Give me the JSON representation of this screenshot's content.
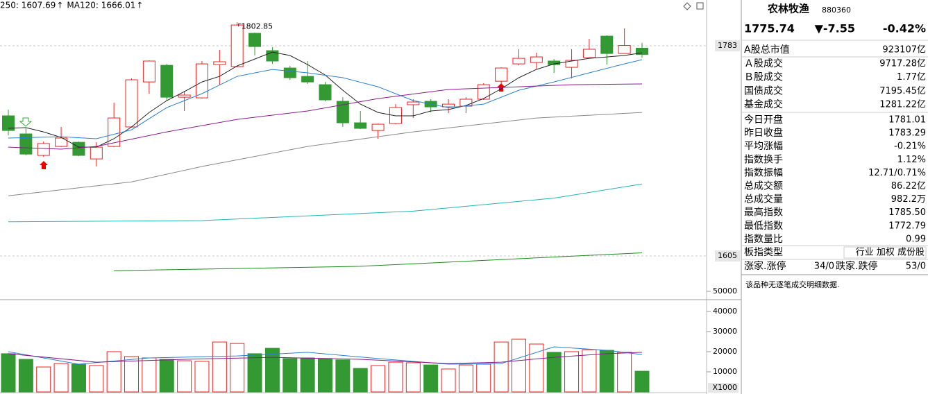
{
  "chart_data": [
    {
      "type": "candlestick",
      "legend": [
        {
          "label": "250: 1607.69",
          "arrow": "↑",
          "color": "#1a8a1a"
        },
        {
          "label": "MA120: 1666.01",
          "arrow": "↑",
          "color": "#1fb5b5"
        }
      ],
      "up_color": "#ee2222",
      "down_color": "#339933",
      "open": [
        1723.7,
        1708.4,
        1690.2,
        1697.8,
        1701.3,
        1687.2,
        1697.8,
        1714.3,
        1752.4,
        1766.5,
        1739.5,
        1738.9,
        1767.1,
        1765.4,
        1793.6,
        1778.9,
        1764.2,
        1757.1,
        1750.1,
        1736.0,
        1717.8,
        1711.3,
        1717.2,
        1733.1,
        1736.0,
        1731.3,
        1731.9,
        1737.8,
        1753.0,
        1767.7,
        1768.9,
        1770.1,
        1764.8,
        1773.0,
        1791.2,
        1776.5,
        1781.01
      ],
      "high": [
        1728.9,
        1713.1,
        1701.9,
        1714.3,
        1701.9,
        1701.3,
        1734.8,
        1755.4,
        1770.7,
        1767.7,
        1744.8,
        1770.1,
        1779.5,
        1802.85,
        1794.2,
        1781.8,
        1766.0,
        1770.1,
        1752.4,
        1739.5,
        1727.8,
        1717.2,
        1733.6,
        1737.8,
        1737.8,
        1737.8,
        1739.5,
        1751.3,
        1764.8,
        1780.1,
        1777.1,
        1771.8,
        1780.1,
        1788.9,
        1791.8,
        1797.7,
        1785.5
      ],
      "low": [
        1707.2,
        1690.2,
        1689.0,
        1697.2,
        1689.6,
        1680.8,
        1697.2,
        1713.7,
        1742.5,
        1736.6,
        1727.8,
        1738.3,
        1750.1,
        1764.8,
        1774.8,
        1767.7,
        1754.2,
        1750.7,
        1736.0,
        1714.3,
        1712.5,
        1704.3,
        1716.6,
        1721.9,
        1726.6,
        1726.0,
        1726.0,
        1737.2,
        1750.1,
        1766.5,
        1763.6,
        1760.1,
        1755.4,
        1773.0,
        1767.1,
        1776.5,
        1772.79
      ],
      "close": [
        1711.3,
        1691.3,
        1700.2,
        1704.9,
        1690.2,
        1697.2,
        1721.9,
        1754.2,
        1770.1,
        1739.5,
        1741.3,
        1767.7,
        1769.5,
        1800.6,
        1782.4,
        1770.1,
        1756.0,
        1752.4,
        1737.2,
        1717.8,
        1713.1,
        1716.6,
        1730.7,
        1735.4,
        1731.3,
        1733.6,
        1737.8,
        1750.1,
        1764.2,
        1772.4,
        1773.6,
        1767.1,
        1770.7,
        1780.1,
        1776.5,
        1783.29,
        1775.74
      ],
      "series": [
        {
          "color": "#222222",
          "x": [
            0,
            1,
            2,
            3,
            4,
            5,
            6,
            7,
            8,
            9,
            10,
            11,
            12,
            13,
            14,
            15,
            16,
            17,
            18,
            19,
            20,
            21,
            22,
            23,
            24,
            25,
            26,
            27,
            28,
            29,
            30,
            31,
            32,
            33,
            34,
            35,
            36
          ],
          "values": [
            1713.1,
            1713.7,
            1710.1,
            1705.4,
            1697.2,
            1697.2,
            1704.3,
            1714.3,
            1726.6,
            1736.6,
            1744.2,
            1752.4,
            1757.1,
            1766.0,
            1771.8,
            1777.7,
            1774.8,
            1767.1,
            1758.3,
            1745.4,
            1733.6,
            1726.6,
            1723.7,
            1723.7,
            1727.8,
            1729.0,
            1732.5,
            1738.3,
            1746.6,
            1756.0,
            1763.0,
            1767.7,
            1770.1,
            1772.4,
            1773.6,
            1774.8,
            1777.1
          ]
        },
        {
          "color": "#2a7fd0",
          "x": [
            0,
            3,
            5,
            7,
            9,
            11,
            13,
            15,
            17,
            19,
            21,
            23,
            25,
            27,
            29,
            31,
            33,
            35,
            36
          ],
          "values": [
            1704.9,
            1706.0,
            1704.3,
            1711.9,
            1730.7,
            1742.5,
            1757.1,
            1763.0,
            1760.1,
            1756.0,
            1748.3,
            1736.6,
            1730.7,
            1733.6,
            1745.4,
            1752.4,
            1760.1,
            1767.7,
            1771.3
          ]
        },
        {
          "color": "#8a1a8a",
          "x": [
            0,
            3,
            5,
            9,
            13,
            17,
            21,
            25,
            29,
            32,
            36
          ],
          "values": [
            1697.2,
            1695.5,
            1697.8,
            1710.1,
            1720.7,
            1727.8,
            1738.3,
            1746.0,
            1748.3,
            1750.1,
            1750.7
          ]
        },
        {
          "color": "#888888",
          "x": [
            0,
            7,
            11,
            17,
            23,
            30,
            36
          ],
          "values": [
            1656.0,
            1667.8,
            1680.8,
            1697.8,
            1710.1,
            1721.9,
            1726.6
          ]
        },
        {
          "color": "#1fb5b5",
          "x": [
            0,
            11,
            23,
            31,
            36
          ],
          "values": [
            1634.0,
            1635.0,
            1643.0,
            1654.0,
            1666.0
          ]
        },
        {
          "color": "#1a8a1a",
          "x": [
            6,
            20,
            36
          ],
          "values": [
            1592.6,
            1596.3,
            1607.7
          ]
        }
      ],
      "ylim": [
        1569.2,
        1821.8
      ],
      "yticks": [
        1605,
        1783
      ],
      "grid": true
    },
    {
      "type": "bar",
      "values": [
        19000,
        16200,
        12400,
        14100,
        13800,
        13100,
        20000,
        17600,
        16900,
        16200,
        15500,
        15200,
        24800,
        24100,
        19000,
        21700,
        16600,
        16900,
        16600,
        15900,
        11700,
        13100,
        14800,
        14500,
        13400,
        11400,
        13400,
        13800,
        24800,
        26200,
        23800,
        19700,
        20000,
        21000,
        20700,
        19700,
        10300
      ],
      "series": [
        {
          "color": "#2a7fd0",
          "x": [
            0,
            4,
            8,
            13,
            17,
            21,
            25,
            28,
            31,
            34,
            36
          ],
          "values": [
            20000,
            13800,
            16900,
            17900,
            19700,
            16600,
            13800,
            14100,
            22400,
            20700,
            18600
          ]
        },
        {
          "color": "#8a1a8a",
          "x": [
            0,
            5,
            10,
            15,
            20,
            25,
            28,
            31,
            34,
            36
          ],
          "values": [
            19000,
            14800,
            16200,
            17200,
            16200,
            14100,
            14800,
            17200,
            19000,
            19700
          ]
        }
      ],
      "ylim": [
        0,
        50000
      ],
      "yticks": [
        10000,
        20000,
        30000,
        40000,
        50000
      ],
      "unit": "X1000"
    }
  ],
  "panel": {
    "name": "农林牧渔",
    "code": "880360",
    "price": "1775.74",
    "change": "▼-7.55",
    "pct": "-0.42%",
    "quote_color": "#119911",
    "rows": [
      {
        "label": "A股总市值",
        "value": "923107亿",
        "color": "#000000"
      },
      {
        "label": "Ａ股成交",
        "value": "9717.28亿",
        "color": "#000000"
      },
      {
        "label": "Ｂ股成交",
        "value": "1.77亿",
        "color": "#000000"
      },
      {
        "label": "国债成交",
        "value": "7195.45亿",
        "color": "#000000"
      },
      {
        "label": "基金成交",
        "value": "1281.22亿",
        "color": "#000000"
      },
      {
        "label": "今日开盘",
        "value": "1781.01",
        "color": "#dd1111"
      },
      {
        "label": "昨日收盘",
        "value": "1783.29",
        "color": "#000000"
      },
      {
        "label": "平均涨幅",
        "value": "-0.21%",
        "color": "#119911"
      },
      {
        "label": "指数换手",
        "value": "1.12%",
        "color": "#000000"
      },
      {
        "label": "指数振幅",
        "value": "12.71/0.71%",
        "color": "#000000"
      },
      {
        "label": "总成交额",
        "value": "86.22亿",
        "color": "#000000"
      },
      {
        "label": "总成交量",
        "value": "982.2万",
        "color": "#000000"
      },
      {
        "label": "最高指数",
        "value": "1785.50",
        "color": "#dd1111"
      },
      {
        "label": "最低指数",
        "value": "1772.79",
        "color": "#119911"
      },
      {
        "label": "指数量比",
        "value": "0.99",
        "color": "#119911"
      }
    ],
    "type_label": "板指类型",
    "type_value": "行业 加权 成份股",
    "rise_label": "涨家.涨停",
    "rise_value": "34/0",
    "rise_color": "#dd1111",
    "fall_label": "跌家.跌停",
    "fall_value": "53/0",
    "fall_color": "#119911",
    "note": "该品种无逐笔成交明细数据."
  }
}
